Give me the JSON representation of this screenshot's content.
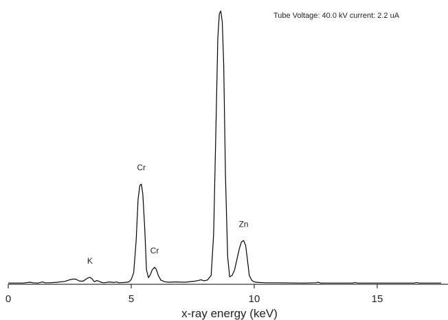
{
  "chart_data": {
    "type": "line",
    "title": "",
    "xlabel": "x-ray energy (keV)",
    "ylabel": "",
    "xlim": [
      0,
      17.6
    ],
    "ylim": [
      0,
      100
    ],
    "xticks": [
      "0",
      "5",
      "10",
      "15"
    ],
    "xtick_values": [
      0,
      5,
      10,
      15
    ],
    "annotation": "Tube Voltage: 40.0 kV current: 2.2 uA",
    "colors": {
      "line": "#000000",
      "axis": "#000000",
      "text": "#222222"
    },
    "peaks": [
      {
        "label": "K",
        "x": 3.32,
        "y": 2.3
      },
      {
        "label": "Cr",
        "x": 5.41,
        "y": 36.5
      },
      {
        "label": "Cr",
        "x": 5.95,
        "y": 6.0
      },
      {
        "label": "Zn",
        "x": 8.64,
        "y": 100
      },
      {
        "label": "Zn",
        "x": 9.57,
        "y": 15.8
      }
    ],
    "series": [
      {
        "x": [
          0,
          0.6,
          0.9,
          1.0,
          1.2,
          1.4,
          1.5,
          1.7,
          2.0,
          2.3,
          2.5,
          2.65,
          2.75,
          2.9,
          3.05,
          3.15,
          3.25,
          3.32,
          3.4,
          3.5,
          3.6,
          3.7,
          3.8,
          3.9,
          4.1,
          4.3,
          4.4,
          4.5,
          4.7,
          4.9,
          5.0,
          5.1,
          5.2,
          5.28,
          5.35,
          5.41,
          5.47,
          5.55,
          5.62,
          5.7,
          5.78,
          5.85,
          5.95,
          6.02,
          6.1,
          6.2,
          6.35,
          6.5,
          6.8,
          7.2,
          7.6,
          7.85,
          7.95,
          8.1,
          8.25,
          8.35,
          8.45,
          8.52,
          8.58,
          8.64,
          8.7,
          8.76,
          8.83,
          8.92,
          9.0,
          9.1,
          9.2,
          9.3,
          9.4,
          9.48,
          9.57,
          9.65,
          9.72,
          9.8,
          9.9,
          10.0,
          10.2,
          10.5,
          11.0,
          12.0,
          12.5,
          12.6,
          12.7,
          13.5,
          14.0,
          14.1,
          14.2,
          15.0,
          16.0,
          16.5,
          16.6,
          16.7,
          17.6
        ],
        "y": [
          0.2,
          0.2,
          0.5,
          0.3,
          0.2,
          0.6,
          0.3,
          0.3,
          0.5,
          0.8,
          1.4,
          1.7,
          1.6,
          0.9,
          0.9,
          1.6,
          2.1,
          2.3,
          1.8,
          0.7,
          1.1,
          0.8,
          0.4,
          0.3,
          0.6,
          0.4,
          0.6,
          0.3,
          0.4,
          0.6,
          1.5,
          4,
          16,
          31,
          36,
          36.5,
          33,
          20,
          5,
          2.2,
          3.3,
          5,
          6,
          5.2,
          3,
          1.3,
          0.7,
          0.5,
          0.6,
          0.5,
          0.9,
          1.4,
          1.0,
          1.3,
          3,
          18,
          60,
          90,
          99,
          100,
          96,
          80,
          40,
          10,
          2.5,
          3,
          5,
          9,
          13,
          15.3,
          15.8,
          14,
          9,
          3,
          1.2,
          0.6,
          0.4,
          0.3,
          0.3,
          0.2,
          0.3,
          0.5,
          0.2,
          0.2,
          0.2,
          0.4,
          0.2,
          0.2,
          0.2,
          0.2,
          0.4,
          0.2,
          0.2
        ]
      }
    ]
  }
}
